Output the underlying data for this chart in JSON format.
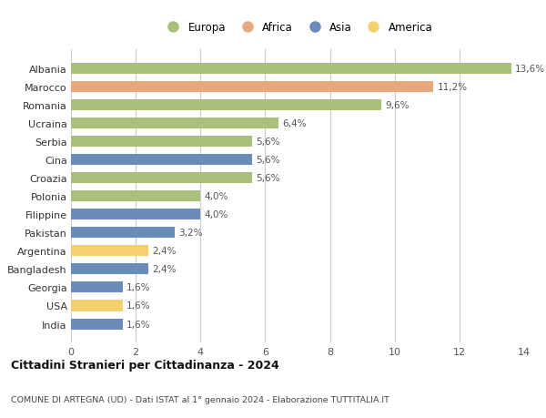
{
  "countries": [
    "Albania",
    "Marocco",
    "Romania",
    "Ucraina",
    "Serbia",
    "Cina",
    "Croazia",
    "Polonia",
    "Filippine",
    "Pakistan",
    "Argentina",
    "Bangladesh",
    "Georgia",
    "USA",
    "India"
  ],
  "values": [
    13.6,
    11.2,
    9.6,
    6.4,
    5.6,
    5.6,
    5.6,
    4.0,
    4.0,
    3.2,
    2.4,
    2.4,
    1.6,
    1.6,
    1.6
  ],
  "continents": [
    "Europa",
    "Africa",
    "Europa",
    "Europa",
    "Europa",
    "Asia",
    "Europa",
    "Europa",
    "Asia",
    "Asia",
    "America",
    "Asia",
    "Asia",
    "America",
    "Asia"
  ],
  "colors": {
    "Europa": "#a8c07a",
    "Africa": "#e8a87c",
    "Asia": "#6b8cba",
    "America": "#f5d070"
  },
  "xlim": [
    0,
    14
  ],
  "xticks": [
    0,
    2,
    4,
    6,
    8,
    10,
    12,
    14
  ],
  "title": "Cittadini Stranieri per Cittadinanza - 2024",
  "subtitle": "COMUNE DI ARTEGNA (UD) - Dati ISTAT al 1° gennaio 2024 - Elaborazione TUTTITALIA.IT",
  "background_color": "#ffffff",
  "grid_color": "#cccccc",
  "bar_height": 0.6,
  "legend_order": [
    "Europa",
    "Africa",
    "Asia",
    "America"
  ]
}
